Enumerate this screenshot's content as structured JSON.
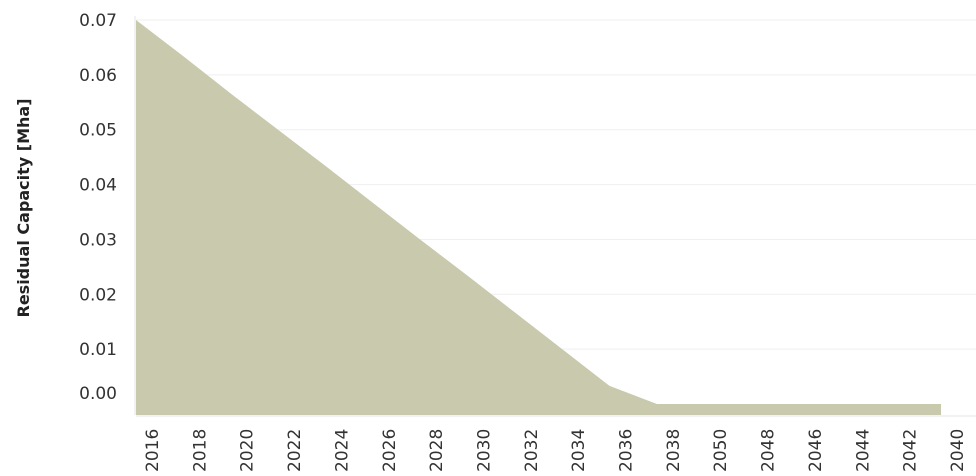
{
  "chart_data": {
    "type": "area",
    "title": "",
    "xlabel": "",
    "ylabel": "Residual Capacity [Mha]",
    "categories": [
      "2016",
      "2018",
      "2020",
      "2022",
      "2024",
      "2026",
      "2028",
      "2030",
      "2032",
      "2034",
      "2036",
      "2038",
      "2050",
      "2048",
      "2046",
      "2044",
      "2042",
      "2040"
    ],
    "series": [
      {
        "values": [
          0.07,
          0.0634,
          0.0566,
          0.05,
          0.0434,
          0.0367,
          0.03,
          0.0234,
          0.0167,
          0.01,
          0.0033,
          0.0,
          0.0,
          0.0,
          0.0,
          0.0,
          0.0,
          0.0
        ],
        "color": "#c9c9ad"
      }
    ],
    "ylim": [
      -0.002,
      0.07
    ],
    "yticks": [
      "0.07",
      "0.06",
      "0.05",
      "0.04",
      "0.03",
      "0.02",
      "0.01",
      "0.00"
    ],
    "grid": true,
    "legend": "none"
  }
}
